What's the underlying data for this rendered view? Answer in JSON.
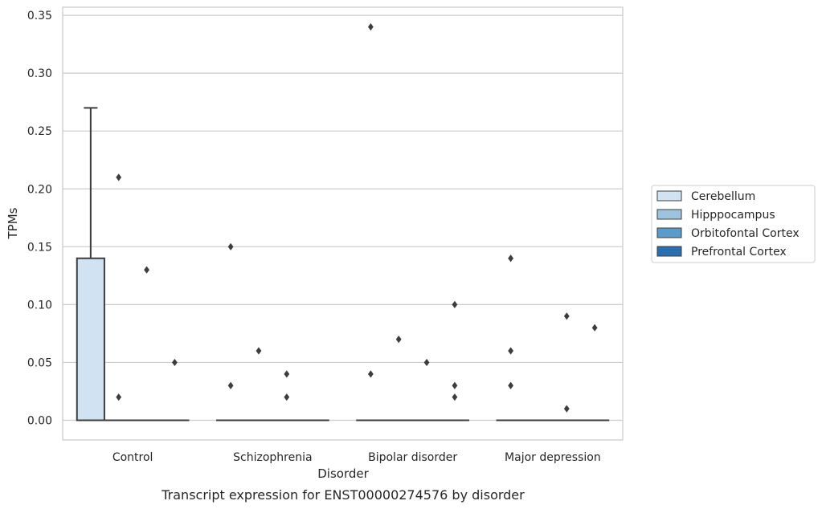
{
  "chart_data": {
    "type": "box",
    "caption": "Transcript expression for ENST00000274576 by disorder",
    "xlabel": "Disorder",
    "ylabel": "TPMs",
    "ylim": [
      -0.017,
      0.357
    ],
    "yticks": [
      0.0,
      0.05,
      0.1,
      0.15,
      0.2,
      0.25,
      0.3,
      0.35
    ],
    "ytick_labels": [
      "0.00",
      "0.05",
      "0.10",
      "0.15",
      "0.20",
      "0.25",
      "0.30",
      "0.35"
    ],
    "grid": true,
    "legend_position": "right",
    "categories": [
      "Control",
      "Schizophrenia",
      "Bipolar disorder",
      "Major depression"
    ],
    "series": [
      {
        "name": "Cerebellum",
        "color": "#d1e2f2",
        "boxes": [
          {
            "q1": 0.0,
            "median": 0.0,
            "q3": 0.14,
            "whisker_low": 0.0,
            "whisker_high": 0.27,
            "outliers": []
          },
          {
            "q1": 0.0,
            "median": 0.0,
            "q3": 0.0,
            "whisker_low": 0.0,
            "whisker_high": 0.0,
            "outliers": [
              0.15,
              0.03
            ]
          },
          {
            "q1": 0.0,
            "median": 0.0,
            "q3": 0.0,
            "whisker_low": 0.0,
            "whisker_high": 0.0,
            "outliers": [
              0.34,
              0.04
            ]
          },
          {
            "q1": 0.0,
            "median": 0.0,
            "q3": 0.0,
            "whisker_low": 0.0,
            "whisker_high": 0.0,
            "outliers": [
              0.14,
              0.06,
              0.03
            ]
          }
        ]
      },
      {
        "name": "Hipppocampus",
        "color": "#9dc3de",
        "boxes": [
          {
            "q1": 0.0,
            "median": 0.0,
            "q3": 0.0,
            "whisker_low": 0.0,
            "whisker_high": 0.0,
            "outliers": [
              0.21,
              0.02
            ]
          },
          {
            "q1": 0.0,
            "median": 0.0,
            "q3": 0.0,
            "whisker_low": 0.0,
            "whisker_high": 0.0,
            "outliers": [
              0.06
            ]
          },
          {
            "q1": 0.0,
            "median": 0.0,
            "q3": 0.0,
            "whisker_low": 0.0,
            "whisker_high": 0.0,
            "outliers": [
              0.07
            ]
          },
          {
            "q1": 0.0,
            "median": 0.0,
            "q3": 0.0,
            "whisker_low": 0.0,
            "whisker_high": 0.0,
            "outliers": []
          }
        ]
      },
      {
        "name": "Orbitofontal Cortex",
        "color": "#5a9bc9",
        "boxes": [
          {
            "q1": 0.0,
            "median": 0.0,
            "q3": 0.0,
            "whisker_low": 0.0,
            "whisker_high": 0.0,
            "outliers": [
              0.13
            ]
          },
          {
            "q1": 0.0,
            "median": 0.0,
            "q3": 0.0,
            "whisker_low": 0.0,
            "whisker_high": 0.0,
            "outliers": [
              0.04,
              0.02
            ]
          },
          {
            "q1": 0.0,
            "median": 0.0,
            "q3": 0.0,
            "whisker_low": 0.0,
            "whisker_high": 0.0,
            "outliers": [
              0.05
            ]
          },
          {
            "q1": 0.0,
            "median": 0.0,
            "q3": 0.0,
            "whisker_low": 0.0,
            "whisker_high": 0.0,
            "outliers": [
              0.09,
              0.01
            ]
          }
        ]
      },
      {
        "name": "Prefrontal Cortex",
        "color": "#2a6eae",
        "boxes": [
          {
            "q1": 0.0,
            "median": 0.0,
            "q3": 0.0,
            "whisker_low": 0.0,
            "whisker_high": 0.0,
            "outliers": [
              0.05
            ]
          },
          {
            "q1": 0.0,
            "median": 0.0,
            "q3": 0.0,
            "whisker_low": 0.0,
            "whisker_high": 0.0,
            "outliers": []
          },
          {
            "q1": 0.0,
            "median": 0.0,
            "q3": 0.0,
            "whisker_low": 0.0,
            "whisker_high": 0.0,
            "outliers": [
              0.1,
              0.03,
              0.02
            ]
          },
          {
            "q1": 0.0,
            "median": 0.0,
            "q3": 0.0,
            "whisker_low": 0.0,
            "whisker_high": 0.0,
            "outliers": [
              0.08
            ]
          }
        ]
      }
    ]
  }
}
